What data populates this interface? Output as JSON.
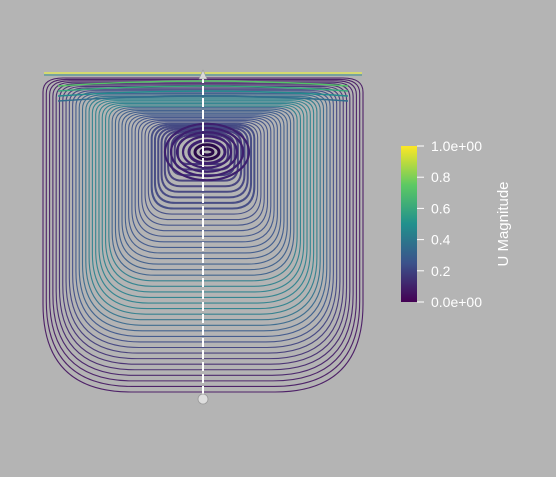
{
  "scene": {
    "background": "#b4b4b4",
    "colormap": "viridis",
    "streamline_count": 42,
    "vortex_center_label": ""
  },
  "colorbar": {
    "title": "U Magnitude",
    "range": [
      0.0,
      1.0
    ],
    "ticks": [
      {
        "value": 1.0,
        "label": "1.0e+00"
      },
      {
        "value": 0.8,
        "label": "0.8"
      },
      {
        "value": 0.6,
        "label": "0.6"
      },
      {
        "value": 0.4,
        "label": "0.4"
      },
      {
        "value": 0.2,
        "label": "0.2"
      },
      {
        "value": 0.0,
        "label": "0.0e+00"
      }
    ],
    "colors": [
      "#440154",
      "#3b528b",
      "#21908d",
      "#5dc963",
      "#fde725"
    ]
  }
}
